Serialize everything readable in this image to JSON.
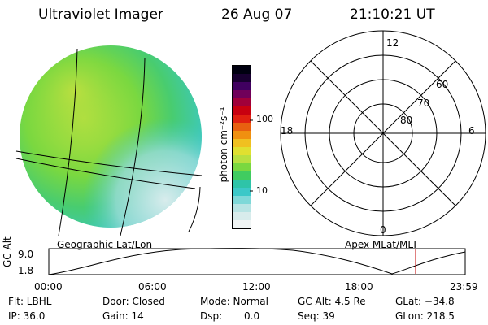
{
  "header": {
    "instrument": "Ultraviolet Imager",
    "date": "26 Aug 07",
    "time": "21:10:21 UT"
  },
  "colorbar": {
    "unit_label": "photon cm⁻²s⁻¹",
    "ticks": [
      "100",
      "10"
    ],
    "colors": [
      "#f0f4f4",
      "#d8ecec",
      "#b8e4e4",
      "#7ed8d8",
      "#3cc8c8",
      "#2ec4a8",
      "#40cc60",
      "#7ad840",
      "#b8e040",
      "#e0e030",
      "#f0c020",
      "#f09010",
      "#e86010",
      "#e02010",
      "#c80010",
      "#a0003a",
      "#70005a",
      "#400060",
      "#180030",
      "#000010"
    ]
  },
  "auroral_image": {
    "label": "Geographic Lat/Lon"
  },
  "polar_plot": {
    "label": "Apex MLat/MLT",
    "mlt_labels": [
      "12",
      "18",
      "6",
      "0"
    ],
    "lat_labels": [
      "60",
      "70",
      "80"
    ]
  },
  "altitude_strip": {
    "ylabel": "GC Alt",
    "y_ticks": [
      "9.0",
      "1.8"
    ],
    "x_ticks": [
      "00:00",
      "06:00",
      "12:00",
      "18:00",
      "23:59"
    ]
  },
  "status": {
    "row1": {
      "flt": "Flt: LBHL",
      "door": "Door: Closed",
      "mode": "Mode: Normal",
      "gc_alt": "GC Alt: 4.5 Re",
      "glat": "GLat: −34.8"
    },
    "row2": {
      "ip": "IP: 36.0",
      "gain": "Gain: 14",
      "dsp_label": "Dsp:",
      "dsp_value": "0.0",
      "seq": "Seq: 39",
      "glon": "GLon: 218.5"
    }
  }
}
